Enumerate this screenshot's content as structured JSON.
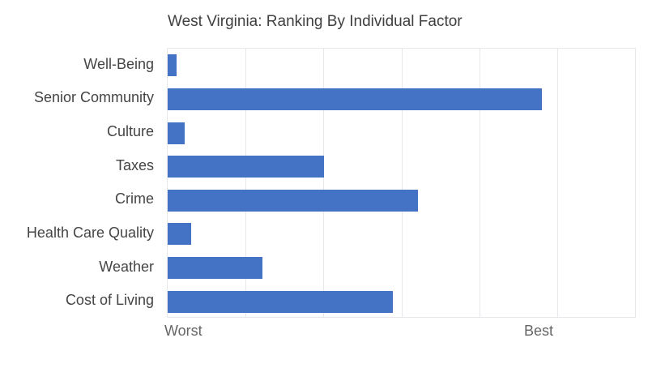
{
  "title": "West Virginia: Ranking By Individual Factor",
  "x_axis": {
    "left_label": "Worst",
    "right_label": "Best"
  },
  "colors": {
    "bar": "#4472c4",
    "gridline": "#e8e8ec",
    "title_text": "#404040",
    "category_text": "#444444",
    "axis_text": "#666666",
    "background": "#ffffff"
  },
  "chart_data": {
    "type": "bar",
    "orientation": "horizontal",
    "title": "West Virginia: Ranking By Individual Factor",
    "categories": [
      "Well-Being",
      "Senior Community",
      "Culture",
      "Taxes",
      "Crime",
      "Health Care Quality",
      "Weather",
      "Cost of Living"
    ],
    "values": [
      1.9,
      80.1,
      3.6,
      33.5,
      53.5,
      5.0,
      20.2,
      48.2
    ],
    "value_scale": "percent of axis length from Worst (0) to Best (100)",
    "xlabel": "",
    "ylabel": "",
    "xlim": [
      0,
      100
    ],
    "x_tick_labels": [
      "Worst",
      "Best"
    ],
    "grid": "vertical gridlines at equal sixths of the axis",
    "gridline_positions_pct": [
      16.667,
      33.333,
      50.0,
      66.667,
      83.333
    ],
    "legend": "none"
  }
}
